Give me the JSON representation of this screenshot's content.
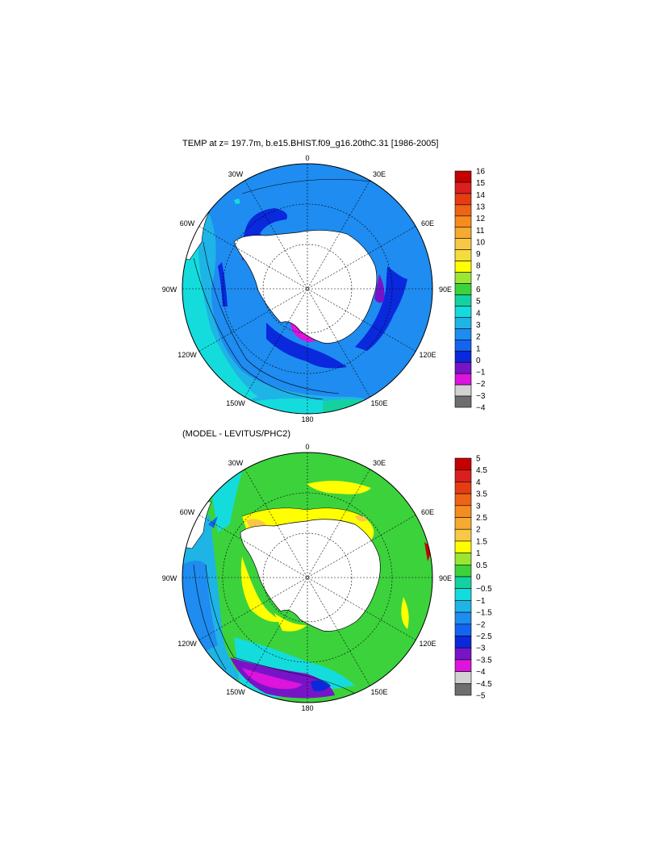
{
  "panels": [
    {
      "title": "TEMP at z= 197.7m, b.e15.BHIST.f09_g16.20thC.31 [1986-2005]",
      "lon_labels": [
        "0",
        "30E",
        "60E",
        "90E",
        "120E",
        "150E",
        "180",
        "150W",
        "120W",
        "90W",
        "60W",
        "30W"
      ],
      "colorbar": {
        "labels": [
          "16",
          "15",
          "14",
          "13",
          "12",
          "11",
          "10",
          "9",
          "8",
          "7",
          "6",
          "5",
          "4",
          "3",
          "2",
          "1",
          "0",
          "−1",
          "−2",
          "−3",
          "−4"
        ],
        "colors": [
          "#c40000",
          "#dc1e1e",
          "#e63c14",
          "#ee6414",
          "#f58c1e",
          "#f5aa32",
          "#f7c846",
          "#f5dc3c",
          "#ffff00",
          "#9be632",
          "#3cd23c",
          "#14d2a0",
          "#14dcdc",
          "#1eb4e6",
          "#1e8cf0",
          "#1464f0",
          "#0a28dc",
          "#7814c8",
          "#dc14dc",
          "#d2d2d2",
          "#6e6e6e"
        ]
      }
    },
    {
      "title": "(MODEL - LEVITUS/PHC2)",
      "lon_labels": [
        "0",
        "30E",
        "60E",
        "90E",
        "120E",
        "150E",
        "180",
        "150W",
        "120W",
        "90W",
        "60W",
        "30W"
      ],
      "colorbar": {
        "labels": [
          "5",
          "4.5",
          "4",
          "3.5",
          "3",
          "2.5",
          "2",
          "1.5",
          "1",
          "0.5",
          "0",
          "−0.5",
          "−1",
          "−1.5",
          "−2",
          "−2.5",
          "−3",
          "−3.5",
          "−4",
          "−4.5",
          "−5"
        ],
        "colors": [
          "#c40000",
          "#dc1e1e",
          "#e63c14",
          "#ee6414",
          "#f58c1e",
          "#f5aa32",
          "#f7c846",
          "#ffff00",
          "#9be632",
          "#3cd23c",
          "#14d2a0",
          "#14dcdc",
          "#1eb4e6",
          "#1e8cf0",
          "#1464f0",
          "#0a28dc",
          "#7814c8",
          "#dc14dc",
          "#d2d2d2",
          "#6e6e6e"
        ]
      }
    }
  ]
}
